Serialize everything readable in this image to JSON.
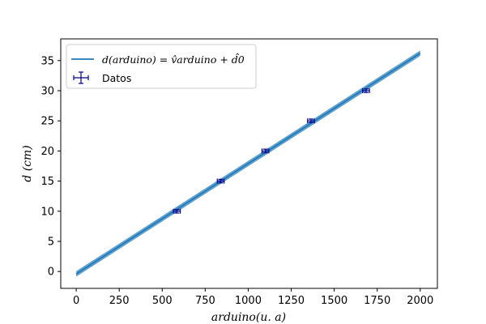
{
  "chart_data": {
    "type": "scatter",
    "xlabel": "arduino(u. a)",
    "ylabel": "d (cm)",
    "xlim": [
      -90,
      2100
    ],
    "ylim": [
      -2.8,
      38.6
    ],
    "xticks": [
      0,
      250,
      500,
      750,
      1000,
      1250,
      1500,
      1750,
      2000
    ],
    "yticks": [
      0,
      5,
      10,
      15,
      20,
      25,
      30,
      35
    ],
    "legend_position": "top-left",
    "grid": false,
    "series": [
      {
        "name": "Datos",
        "kind": "errorbar",
        "color": "#00008b",
        "points": [
          {
            "x": 585,
            "y": 10,
            "xerr": 20,
            "yerr": 0.3
          },
          {
            "x": 840,
            "y": 15,
            "xerr": 20,
            "yerr": 0.3
          },
          {
            "x": 1100,
            "y": 20,
            "xerr": 20,
            "yerr": 0.3
          },
          {
            "x": 1365,
            "y": 25,
            "xerr": 20,
            "yerr": 0.3
          },
          {
            "x": 1685,
            "y": 30,
            "xerr": 20,
            "yerr": 0.3
          }
        ]
      },
      {
        "name": "d(arduino) = v̂arduino + d̂0",
        "kind": "fit-line",
        "color": "#1f77b4",
        "band_color": "#3f8fc9",
        "slope": 0.01831,
        "intercept": -0.4,
        "band_halfwidth": 0.45,
        "x_range": [
          0,
          2000
        ]
      }
    ]
  },
  "legend": {
    "fit_label": "d(arduino) = v̂arduino + d̂0",
    "data_label": "Datos"
  }
}
